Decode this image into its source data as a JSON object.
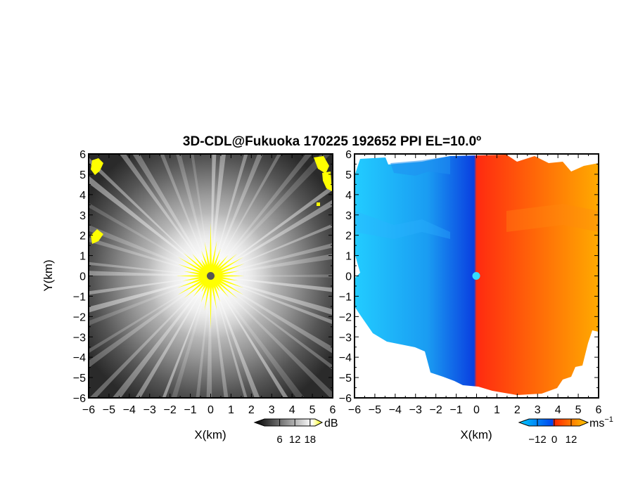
{
  "title": "3D-CDL@Fukuoka 170225 192652 PPI EL=10.0º",
  "chart_data": [
    {
      "type": "heatmap",
      "variable": "reflectivity",
      "xlabel": "X(km)",
      "ylabel": "Y(km)",
      "xlim": [
        -6,
        6
      ],
      "ylim": [
        -6,
        6
      ],
      "x_ticks": [
        "−6",
        "−5",
        "−4",
        "−3",
        "−2",
        "−1",
        "0",
        "1",
        "2",
        "3",
        "4",
        "5",
        "6"
      ],
      "y_ticks": [
        "6",
        "5",
        "4",
        "3",
        "2",
        "1",
        "0",
        "−1",
        "−2",
        "−3",
        "−4",
        "−5",
        "−6"
      ],
      "colorbar": {
        "unit": "dB",
        "ticks": [
          "6",
          "12",
          "18"
        ],
        "tick_values": [
          6,
          12,
          18
        ],
        "range": [
          0,
          20
        ],
        "colors": [
          "#000000",
          "#ffffff",
          "#ffff00"
        ]
      },
      "grid": false
    },
    {
      "type": "heatmap",
      "variable": "doppler_velocity",
      "xlabel": "X(km)",
      "ylabel": "",
      "xlim": [
        -6,
        6
      ],
      "ylim": [
        -6,
        6
      ],
      "x_ticks": [
        "−6",
        "−5",
        "−4",
        "−3",
        "−2",
        "−1",
        "0",
        "1",
        "2",
        "3",
        "4",
        "5",
        "6"
      ],
      "y_ticks": [
        "6",
        "5",
        "4",
        "3",
        "2",
        "1",
        "0",
        "−1",
        "−2",
        "−3",
        "−4",
        "−5",
        "−6"
      ],
      "colorbar": {
        "unit": "ms",
        "unit_exponent": "−1",
        "ticks": [
          "−12",
          "0",
          "12"
        ],
        "tick_values": [
          -12,
          0,
          12
        ],
        "range": [
          -18,
          18
        ],
        "colors": [
          "#00ccff",
          "#0044ee",
          "#ff2200",
          "#ffcc00"
        ]
      },
      "grid": false
    }
  ]
}
